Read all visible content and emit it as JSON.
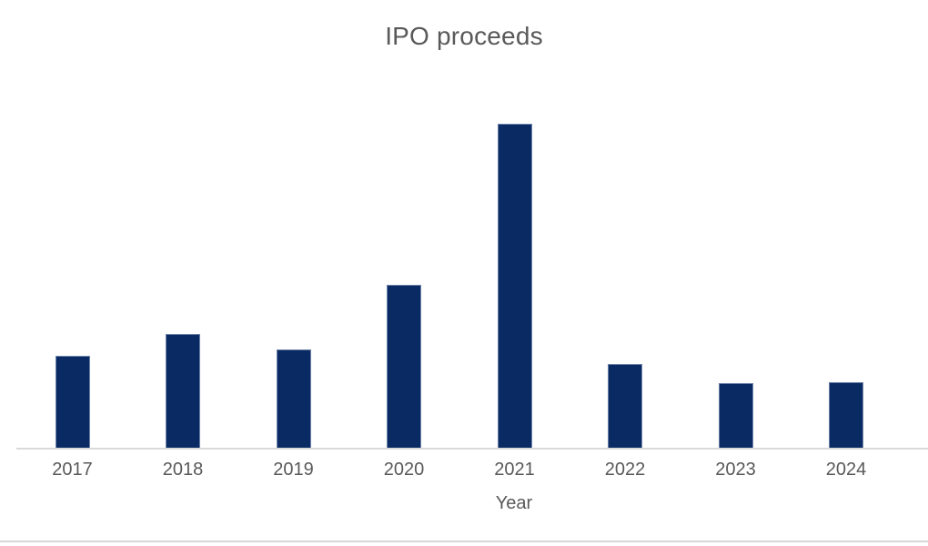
{
  "page": {
    "background_color": "#ffffff"
  },
  "chart_data": {
    "type": "bar",
    "title": "IPO proceeds",
    "xlabel": "Year",
    "ylabel": "",
    "categories": [
      "2017",
      "2018",
      "2019",
      "2020",
      "2021",
      "2022",
      "2023",
      "2024"
    ],
    "values": [
      102,
      126,
      109,
      180,
      357,
      93,
      72,
      73
    ],
    "ylim": [
      0,
      390
    ],
    "grid": false,
    "legend": false,
    "y_axis_visible": false,
    "data_labels_visible": false,
    "colors": {
      "bar_fill": "#0a2a63",
      "title_text": "#595959",
      "tick_label_text": "#595959",
      "axis_title_text": "#595959",
      "axis_line": "#d9d9d9",
      "bottom_divider_line": "#d6d6d6"
    }
  }
}
